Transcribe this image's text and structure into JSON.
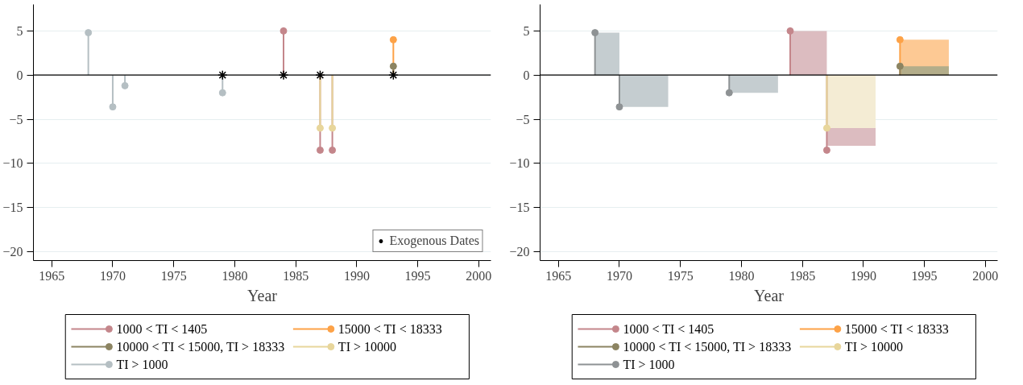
{
  "chart_data": [
    {
      "type": "lollipop",
      "xlabel": "Year",
      "xlim": [
        1963.5,
        2001
      ],
      "xticks": [
        1965,
        1970,
        1975,
        1980,
        1985,
        1990,
        1995,
        2000
      ],
      "ylim": [
        -21,
        8
      ],
      "yticks": [
        -20,
        -15,
        -10,
        -5,
        0,
        5
      ],
      "grid": "y",
      "legend": "bottom",
      "marker": "circle",
      "ref_lines": [
        {
          "axis": "y",
          "value": 0,
          "label": null,
          "color": "#000000"
        }
      ],
      "series": [
        {
          "name": "1000 < TI < 1405",
          "color": "#c4868b",
          "x": [
            1984,
            1987,
            1988
          ],
          "values": [
            5,
            -8.5,
            -8.5
          ]
        },
        {
          "name": "15000 < TI < 18333",
          "color": "#fda247",
          "x": [
            1993
          ],
          "values": [
            4
          ]
        },
        {
          "name": "10000 < TI < 15000, TI > 18333",
          "color": "#8c8462",
          "x": [
            1993
          ],
          "values": [
            1
          ]
        },
        {
          "name": "TI > 10000",
          "color": "#e8d69b",
          "x": [
            1987,
            1988
          ],
          "values": [
            -6,
            -6
          ]
        },
        {
          "name": "TI > 1000",
          "color": "#b5bfc3",
          "x": [
            1968,
            1970,
            1971,
            1979
          ],
          "values": [
            4.8,
            -3.6,
            -1.2,
            -2
          ]
        },
        {
          "name": "Exogenous Dates",
          "type": "scatter",
          "marker": "cross",
          "color": "#000000",
          "x": [
            1979,
            1984,
            1987,
            1993
          ],
          "values": [
            0,
            0,
            0,
            0
          ]
        }
      ]
    },
    {
      "type": "lollipop",
      "xlabel": "Year",
      "xlim": [
        1963.5,
        2001
      ],
      "xticks": [
        1965,
        1970,
        1975,
        1980,
        1985,
        1990,
        1995,
        2000
      ],
      "ylim": [
        -21,
        8
      ],
      "yticks": [
        -20,
        -15,
        -10,
        -5,
        0,
        5
      ],
      "grid": "y",
      "legend": "bottom",
      "marker": "circle",
      "ref_lines": [
        {
          "axis": "y",
          "value": 0,
          "label": null,
          "color": "#000000"
        }
      ],
      "series": [
        {
          "type": "area",
          "marker": "none",
          "color": "#c5cdd0",
          "x": [
            1968,
            1970,
            1970,
            1974
          ],
          "values": [
            4.8,
            4.8,
            -3.6,
            -3.6
          ]
        },
        {
          "type": "area",
          "marker": "none",
          "color": "#c5cdd0",
          "x": [
            1979,
            1983
          ],
          "values": [
            -2,
            -2
          ]
        },
        {
          "type": "area",
          "marker": "none",
          "color": "#dcbcc0",
          "x": [
            1984,
            1987,
            1987,
            1991
          ],
          "values": [
            5,
            5,
            -8,
            -8
          ]
        },
        {
          "type": "area",
          "marker": "none",
          "color": "#f4ecd4",
          "x": [
            1987,
            1991
          ],
          "values": [
            -6,
            -6
          ]
        },
        {
          "type": "area",
          "marker": "none",
          "color": "#fdc994",
          "x": [
            1993,
            1997
          ],
          "values": [
            4,
            4
          ]
        },
        {
          "type": "area",
          "marker": "none",
          "color": "#b3ad8a",
          "x": [
            1993,
            1997
          ],
          "values": [
            1,
            1
          ]
        },
        {
          "name": "1000 < TI < 1405",
          "color": "#c4868b",
          "x": [
            1984,
            1987
          ],
          "values": [
            5,
            -8.5
          ]
        },
        {
          "name": "15000 < TI < 18333",
          "color": "#fda247",
          "x": [
            1993
          ],
          "values": [
            4
          ]
        },
        {
          "name": "10000 < TI < 15000, TI > 18333",
          "color": "#8c8462",
          "x": [
            1993
          ],
          "values": [
            1
          ]
        },
        {
          "name": "TI > 10000",
          "color": "#e8d69b",
          "x": [
            1987
          ],
          "values": [
            -6
          ]
        },
        {
          "name": "TI > 1000",
          "color": "#8e9294",
          "x": [
            1968,
            1970,
            1979
          ],
          "values": [
            4.8,
            -3.6,
            -2
          ]
        }
      ]
    }
  ]
}
